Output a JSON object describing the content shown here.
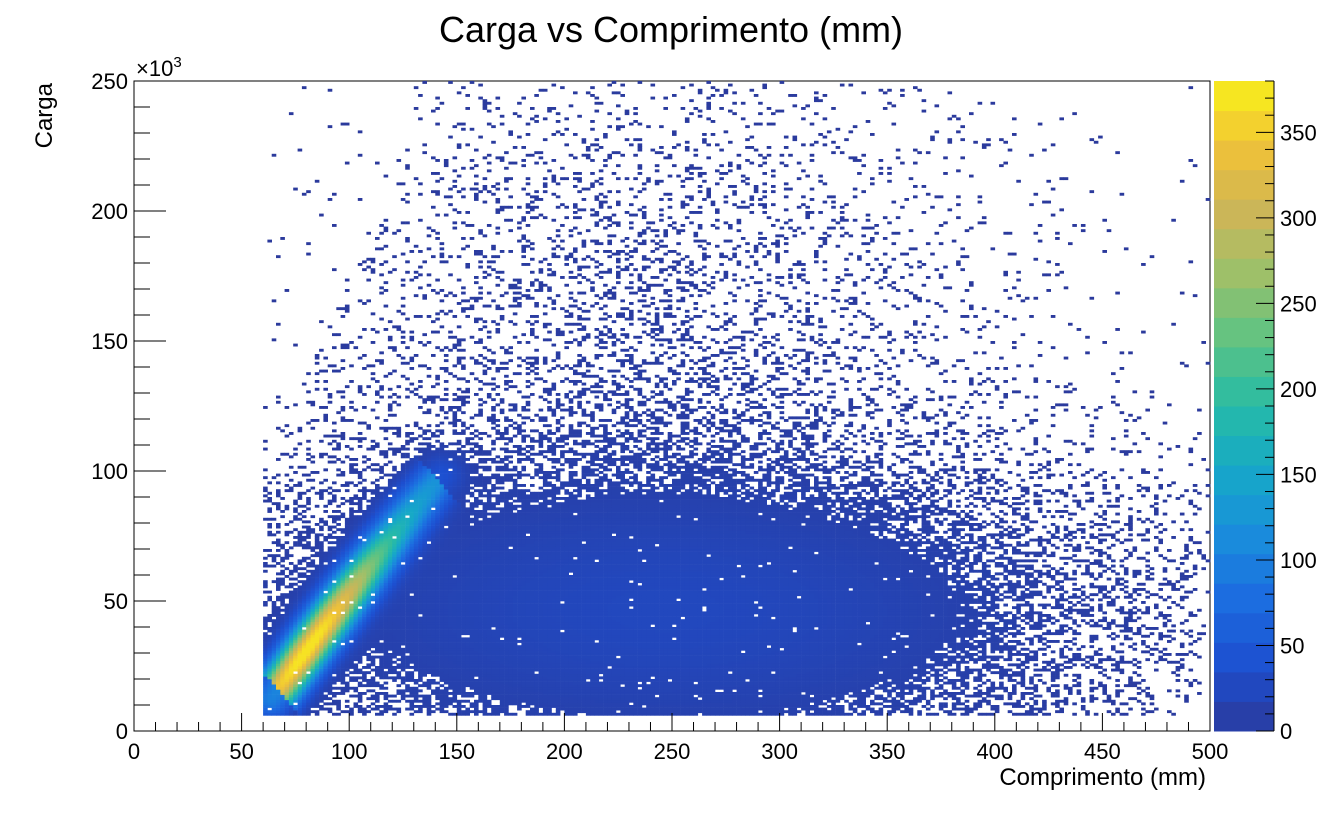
{
  "chart_data": {
    "type": "heatmap",
    "title": "Carga vs Comprimento (mm)",
    "xlabel": "Comprimento (mm)",
    "ylabel": "Carga",
    "y_multiplier": "×10",
    "y_multiplier_exp": "3",
    "xlim": [
      0,
      500
    ],
    "ylim": [
      0,
      250
    ],
    "x_ticks": [
      0,
      50,
      100,
      150,
      200,
      250,
      300,
      350,
      400,
      450,
      500
    ],
    "y_ticks": [
      0,
      50,
      100,
      150,
      200,
      250
    ],
    "z_range": [
      0,
      380
    ],
    "z_ticks": [
      0,
      50,
      100,
      150,
      200,
      250,
      300,
      350
    ],
    "colormap": [
      "#2b3a9c",
      "#1d4fd0",
      "#1c6be0",
      "#1a8ddc",
      "#16a8c8",
      "#27bba6",
      "#5dc383",
      "#9cc06a",
      "#cdb557",
      "#f0c238",
      "#f8f01a"
    ],
    "density_regions": [
      {
        "shape": "cloud",
        "x_range": [
          60,
          470
        ],
        "y_range": [
          5,
          245
        ],
        "level": "sparse"
      },
      {
        "shape": "core",
        "x_range": [
          70,
          400
        ],
        "y_range": [
          8,
          100
        ],
        "level": "low"
      },
      {
        "shape": "ridge",
        "x_from": 70,
        "y_from": 20,
        "x_to": 140,
        "y_to": 95,
        "level": "peak"
      }
    ],
    "peak": {
      "x": 80,
      "y": 25,
      "z": 380
    }
  }
}
